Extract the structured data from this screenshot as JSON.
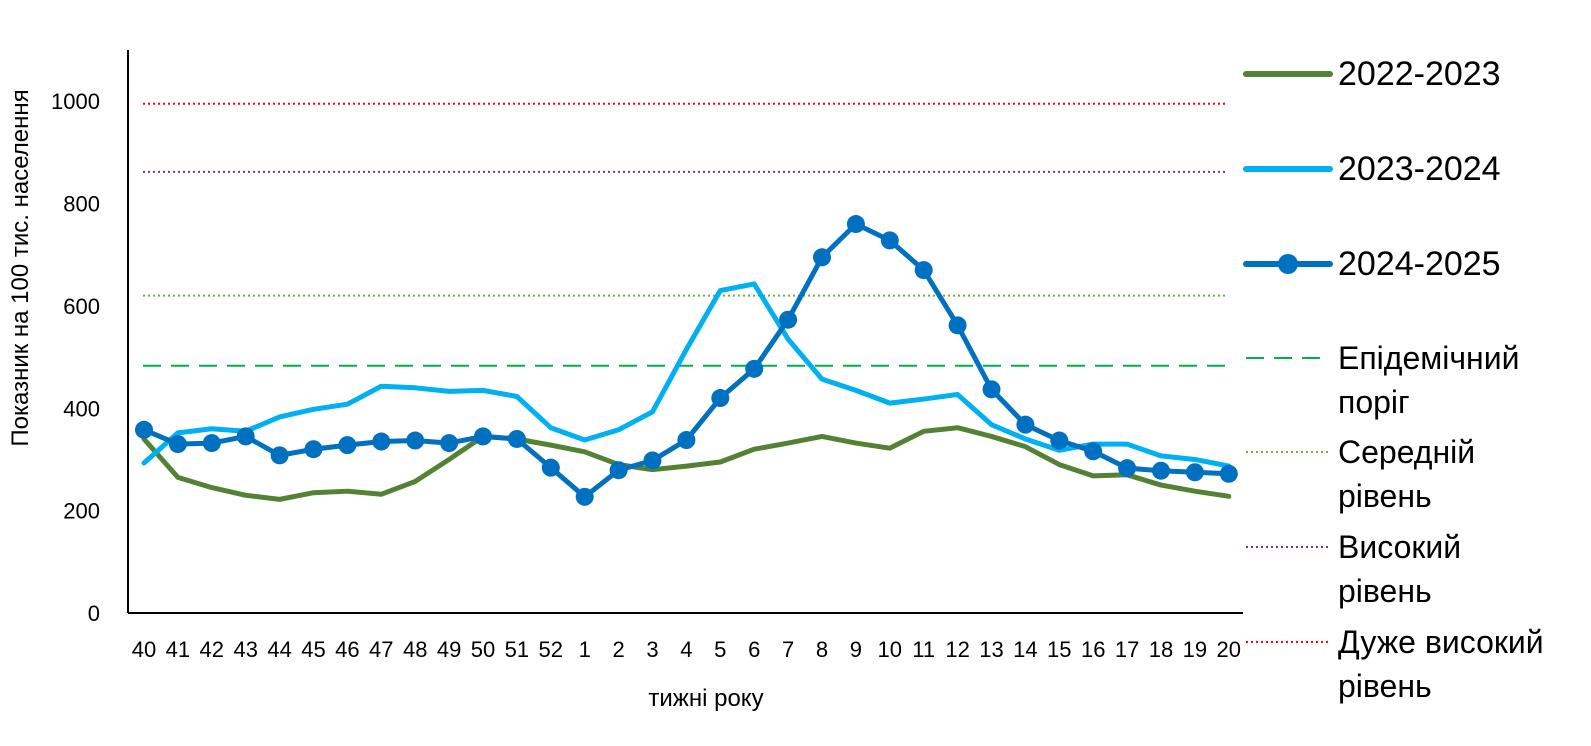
{
  "chart_data": {
    "type": "line",
    "ylabel": "Показник на 100 тис. населення",
    "xlabel": "тижні року",
    "ylim": [
      0,
      1100
    ],
    "yticks": [
      0,
      200,
      400,
      600,
      800,
      1000
    ],
    "categories": [
      "40",
      "41",
      "42",
      "43",
      "44",
      "45",
      "46",
      "47",
      "48",
      "49",
      "50",
      "51",
      "52",
      "1",
      "2",
      "3",
      "4",
      "5",
      "6",
      "7",
      "8",
      "9",
      "10",
      "11",
      "12",
      "13",
      "14",
      "15",
      "16",
      "17",
      "18",
      "19",
      "20"
    ],
    "series": [
      {
        "name": "2022-2023",
        "color": "#548235",
        "markers": false,
        "values": [
          340,
          265,
          245,
          230,
          222,
          235,
          238,
          232,
          257,
          300,
          345,
          340,
          328,
          315,
          290,
          280,
          287,
          295,
          320,
          332,
          345,
          332,
          322,
          355,
          362,
          345,
          325,
          290,
          268,
          270,
          250,
          238,
          228
        ]
      },
      {
        "name": "2023-2024",
        "color": "#00b0f0",
        "markers": false,
        "values": [
          293,
          352,
          360,
          355,
          383,
          398,
          408,
          443,
          440,
          433,
          435,
          423,
          362,
          338,
          358,
          393,
          515,
          630,
          643,
          535,
          457,
          435,
          410,
          418,
          427,
          368,
          340,
          318,
          330,
          330,
          307,
          300,
          287
        ]
      },
      {
        "name": "2024-2025",
        "color": "#0070c0",
        "markers": true,
        "values": [
          358,
          330,
          332,
          345,
          308,
          320,
          328,
          335,
          337,
          332,
          345,
          340,
          284,
          227,
          279,
          298,
          338,
          420,
          477,
          573,
          695,
          760,
          728,
          670,
          562,
          437,
          368,
          337,
          316,
          283,
          278,
          275,
          272
        ]
      }
    ],
    "reference_lines": [
      {
        "name": "Епідемічний поріг",
        "value": 483,
        "color": "#00b050",
        "style": "dashed"
      },
      {
        "name": "Середній рівень",
        "value": 620,
        "color": "#70ad47",
        "style": "dotted"
      },
      {
        "name": "Високий рівень",
        "value": 862,
        "color": "#7030a0",
        "style": "dotted"
      },
      {
        "name": "Дуже високий рівень",
        "value": 995,
        "color": "#ff0000",
        "style": "dotted"
      }
    ]
  },
  "legend": [
    {
      "label": "2022-2023",
      "color": "#548235",
      "kind": "solid"
    },
    {
      "label": "2023-2024",
      "color": "#00b0f0",
      "kind": "solid"
    },
    {
      "label": "2024-2025",
      "color": "#0070c0",
      "kind": "marker"
    },
    {
      "label": " Епідемічний\nпоріг",
      "color": "#00b050",
      "kind": "dashed"
    },
    {
      "label": "Середній\nрівень",
      "color": "#70ad47",
      "kind": "dotted"
    },
    {
      "label": "Високий\nрівень",
      "color": "#7030a0",
      "kind": "dotted"
    },
    {
      "label": "Дуже високий\nрівень",
      "color": "#ff0000",
      "kind": "dotted"
    }
  ]
}
